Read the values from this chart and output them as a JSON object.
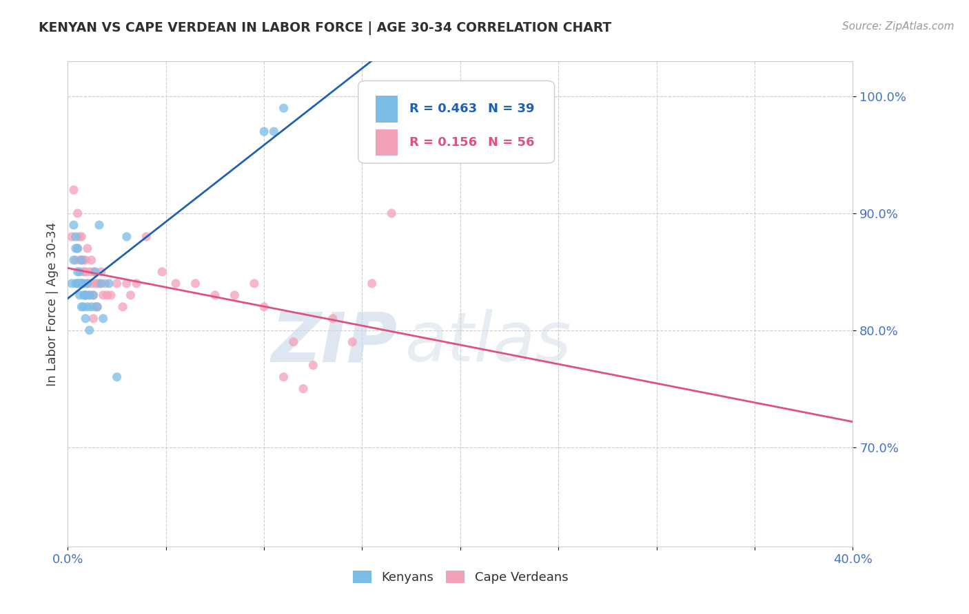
{
  "title": "KENYAN VS CAPE VERDEAN IN LABOR FORCE | AGE 30-34 CORRELATION CHART",
  "source_text": "Source: ZipAtlas.com",
  "ylabel": "In Labor Force | Age 30-34",
  "xlim": [
    0.0,
    0.4
  ],
  "ylim": [
    0.615,
    1.03
  ],
  "yticks": [
    0.7,
    0.8,
    0.9,
    1.0
  ],
  "ytick_labels": [
    "70.0%",
    "80.0%",
    "90.0%",
    "100.0%"
  ],
  "xtick_labels": [
    "0.0%",
    "",
    "",
    "",
    "",
    "",
    "",
    "",
    "40.0%"
  ],
  "kenyan_color": "#7bbce6",
  "cape_verdean_color": "#f4a0b8",
  "kenyan_line_color": "#2060b0",
  "cape_verdean_line_color": "#e05080",
  "legend_R_kenyan": "0.463",
  "legend_N_kenyan": "39",
  "legend_R_cape": "0.156",
  "legend_N_cape": "56",
  "watermark_zip": "ZIP",
  "watermark_atlas": "atlas",
  "kenyan_scatter_x": [
    0.002,
    0.003,
    0.003,
    0.004,
    0.004,
    0.004,
    0.005,
    0.005,
    0.005,
    0.006,
    0.006,
    0.006,
    0.007,
    0.007,
    0.007,
    0.007,
    0.008,
    0.008,
    0.008,
    0.009,
    0.009,
    0.009,
    0.01,
    0.01,
    0.011,
    0.011,
    0.012,
    0.013,
    0.014,
    0.015,
    0.016,
    0.017,
    0.018,
    0.021,
    0.025,
    0.03,
    0.1,
    0.105,
    0.11
  ],
  "kenyan_scatter_y": [
    0.84,
    0.89,
    0.86,
    0.87,
    0.88,
    0.84,
    0.84,
    0.87,
    0.85,
    0.84,
    0.83,
    0.85,
    0.86,
    0.84,
    0.84,
    0.82,
    0.84,
    0.83,
    0.82,
    0.83,
    0.83,
    0.81,
    0.84,
    0.82,
    0.83,
    0.8,
    0.82,
    0.83,
    0.85,
    0.82,
    0.89,
    0.84,
    0.81,
    0.84,
    0.76,
    0.88,
    0.97,
    0.97,
    0.99
  ],
  "cape_verdean_scatter_x": [
    0.002,
    0.003,
    0.004,
    0.005,
    0.005,
    0.005,
    0.006,
    0.006,
    0.007,
    0.007,
    0.007,
    0.008,
    0.008,
    0.009,
    0.009,
    0.009,
    0.01,
    0.01,
    0.011,
    0.011,
    0.012,
    0.012,
    0.013,
    0.013,
    0.013,
    0.014,
    0.014,
    0.015,
    0.015,
    0.016,
    0.017,
    0.018,
    0.019,
    0.02,
    0.022,
    0.025,
    0.028,
    0.03,
    0.032,
    0.035,
    0.04,
    0.048,
    0.055,
    0.065,
    0.075,
    0.085,
    0.095,
    0.1,
    0.11,
    0.115,
    0.12,
    0.125,
    0.135,
    0.145,
    0.155,
    0.165
  ],
  "cape_verdean_scatter_y": [
    0.88,
    0.92,
    0.86,
    0.9,
    0.87,
    0.84,
    0.88,
    0.86,
    0.88,
    0.86,
    0.84,
    0.86,
    0.85,
    0.86,
    0.85,
    0.83,
    0.87,
    0.84,
    0.85,
    0.83,
    0.86,
    0.84,
    0.85,
    0.83,
    0.81,
    0.84,
    0.82,
    0.84,
    0.82,
    0.84,
    0.85,
    0.83,
    0.84,
    0.83,
    0.83,
    0.84,
    0.82,
    0.84,
    0.83,
    0.84,
    0.88,
    0.85,
    0.84,
    0.84,
    0.83,
    0.83,
    0.84,
    0.82,
    0.76,
    0.79,
    0.75,
    0.77,
    0.81,
    0.79,
    0.84,
    0.9
  ],
  "background_color": "#ffffff",
  "grid_color": "#cccccc",
  "tick_color": "#4472c4",
  "axis_label_color": "#404040",
  "title_color": "#303030"
}
